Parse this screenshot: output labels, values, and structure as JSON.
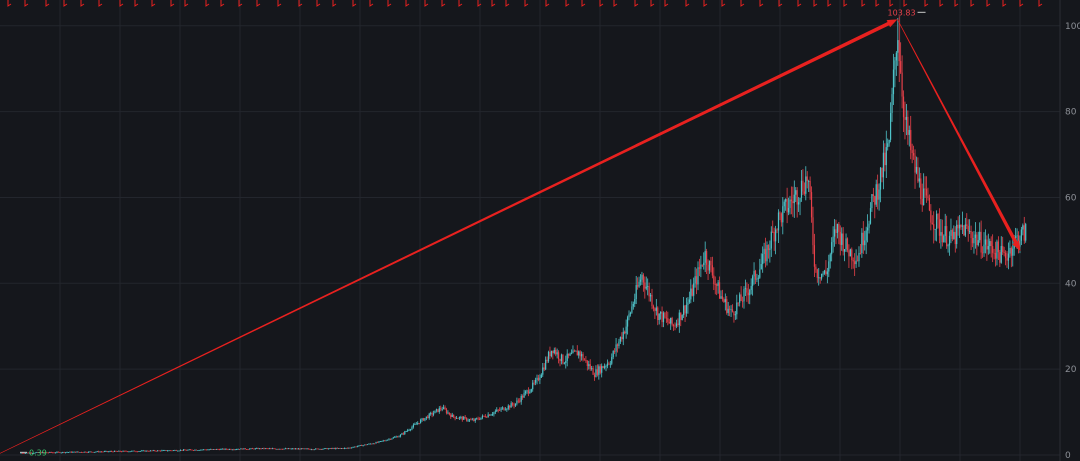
{
  "chart_data": {
    "type": "candlestick",
    "title": "",
    "xlabel": "",
    "ylabel": "",
    "ylim": [
      0,
      106
    ],
    "y_ticks": [
      "0",
      "20",
      "40",
      "60",
      "80",
      "100"
    ],
    "grid": true,
    "price_axis_position": "right",
    "up_color": "#4fc3c9",
    "down_color": "#e8414a",
    "background_color": "#15171c",
    "grid_color": "#23262d",
    "annotations": {
      "high_label": "103.83",
      "high_value": 103.83,
      "low_label": "0.39",
      "low_value": 0.39,
      "arrow_color": "#e8211f"
    },
    "trend_arrows": [
      {
        "from_index": 0,
        "from_value": 0.39,
        "to_index": 0.853,
        "to_value": 101.5,
        "style": "thick"
      },
      {
        "from_index": 0.853,
        "from_value": 101.5,
        "to_index": 0.97,
        "to_value": 47.5,
        "style": "thick"
      }
    ],
    "price_path": [
      [
        0.0,
        0.4
      ],
      [
        0.05,
        0.6
      ],
      [
        0.1,
        0.8
      ],
      [
        0.15,
        1.0
      ],
      [
        0.2,
        1.3
      ],
      [
        0.25,
        1.5
      ],
      [
        0.3,
        1.4
      ],
      [
        0.33,
        1.6
      ],
      [
        0.36,
        3.0
      ],
      [
        0.38,
        4.5
      ],
      [
        0.4,
        8.0
      ],
      [
        0.42,
        11.0
      ],
      [
        0.43,
        9.0
      ],
      [
        0.45,
        8.0
      ],
      [
        0.47,
        10.0
      ],
      [
        0.49,
        12.0
      ],
      [
        0.51,
        17.0
      ],
      [
        0.525,
        25.0
      ],
      [
        0.535,
        22.0
      ],
      [
        0.55,
        24.0
      ],
      [
        0.565,
        19.0
      ],
      [
        0.58,
        22.0
      ],
      [
        0.595,
        30.0
      ],
      [
        0.61,
        42.0
      ],
      [
        0.625,
        33.0
      ],
      [
        0.64,
        30.0
      ],
      [
        0.655,
        36.0
      ],
      [
        0.67,
        47.0
      ],
      [
        0.685,
        37.0
      ],
      [
        0.695,
        33.0
      ],
      [
        0.71,
        38.0
      ],
      [
        0.725,
        45.0
      ],
      [
        0.74,
        55.0
      ],
      [
        0.755,
        60.0
      ],
      [
        0.768,
        65.0
      ],
      [
        0.775,
        43.0
      ],
      [
        0.785,
        42.0
      ],
      [
        0.795,
        53.0
      ],
      [
        0.805,
        48.0
      ],
      [
        0.815,
        46.0
      ],
      [
        0.825,
        55.0
      ],
      [
        0.835,
        63.0
      ],
      [
        0.845,
        72.0
      ],
      [
        0.853,
        100.0
      ],
      [
        0.86,
        78.0
      ],
      [
        0.868,
        68.0
      ],
      [
        0.875,
        62.0
      ],
      [
        0.885,
        56.0
      ],
      [
        0.895,
        52.0
      ],
      [
        0.905,
        50.0
      ],
      [
        0.915,
        53.0
      ],
      [
        0.925,
        51.0
      ],
      [
        0.935,
        49.0
      ],
      [
        0.945,
        48.0
      ],
      [
        0.955,
        46.0
      ],
      [
        0.965,
        50.0
      ],
      [
        0.975,
        52.0
      ]
    ]
  }
}
